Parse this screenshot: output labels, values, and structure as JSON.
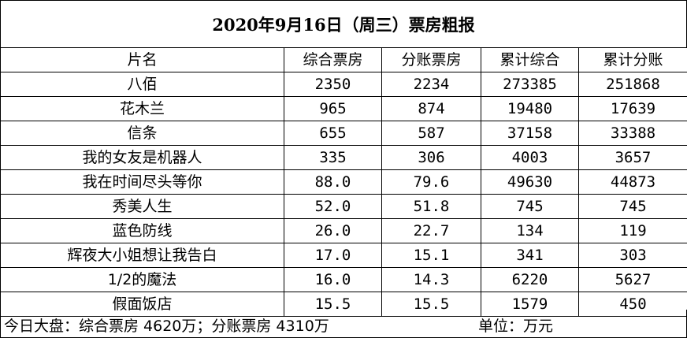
{
  "title": "2020年9月16日（周三）票房粗报",
  "headers": [
    "片名",
    "综合票房",
    "分账票房",
    "累计综合",
    "累计分账"
  ],
  "rows": [
    [
      "八佰",
      "2350",
      "2234",
      "273385",
      "251868"
    ],
    [
      "花木兰",
      "965",
      "874",
      "19480",
      "17639"
    ],
    [
      "信条",
      "655",
      "587",
      "37158",
      "33388"
    ],
    [
      "我的女友是机器人",
      "335",
      "306",
      "4003",
      "3657"
    ],
    [
      "我在时间尽头等你",
      "88.0",
      "79.6",
      "49630",
      "44873"
    ],
    [
      "秀美人生",
      "52.0",
      "51.8",
      "745",
      "745"
    ],
    [
      "蓝色防线",
      "26.0",
      "22.7",
      "134",
      "119"
    ],
    [
      "辉夜大小姐想让我告白",
      "17.0",
      "15.1",
      "341",
      "303"
    ],
    [
      "1/2的魔法",
      "16.0",
      "14.3",
      "6220",
      "5627"
    ],
    [
      "假面饭店",
      "15.5",
      "15.5",
      "1579",
      "450"
    ]
  ],
  "footer": {
    "summary": "今日大盘：综合票房 4620万；分账票房 4310万",
    "unit": "单位：万元"
  }
}
